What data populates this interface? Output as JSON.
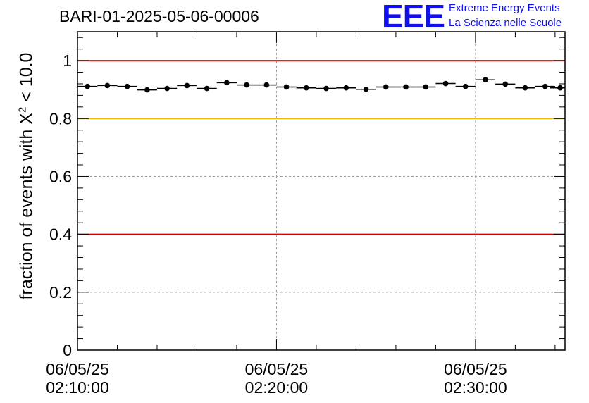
{
  "header": {
    "title": "BARI-01-2025-05-06-00006",
    "logo": "EEE",
    "logo_line1": "Extreme Energy Events",
    "logo_line2": "La Scienza nelle Scuole"
  },
  "colors": {
    "reference_high": "#e00000",
    "reference_warn": "#f5b800",
    "reference_low": "#e00000",
    "logo": "#1010ee"
  },
  "chart_data": {
    "type": "scatter",
    "title": "BARI-01-2025-05-06-00006",
    "ylabel_prefix": "fraction of events with X",
    "ylabel_sup": "2",
    "ylabel_suffix": " < 10.0",
    "xlabel": "",
    "ylim": [
      0,
      1.1
    ],
    "yticks": [
      0,
      0.2,
      0.4,
      0.6,
      0.8,
      1
    ],
    "ytick_labels": [
      "0",
      "0.2",
      "0.4",
      "0.6",
      "0.8",
      "1"
    ],
    "x_unit": "minutes after 06/05/25 02:10:00",
    "xlim": [
      0,
      24.5
    ],
    "xticks": [
      {
        "x": 0,
        "date": "06/05/25",
        "time": "02:10:00"
      },
      {
        "x": 10,
        "date": "06/05/25",
        "time": "02:20:00"
      },
      {
        "x": 20,
        "date": "06/05/25",
        "time": "02:30:00"
      }
    ],
    "grid": true,
    "reference_lines": [
      {
        "y": 1.0,
        "color": "#e00000"
      },
      {
        "y": 0.8,
        "color": "#f5b800"
      },
      {
        "y": 0.4,
        "color": "#e00000"
      }
    ],
    "bin_width": 1,
    "series": [
      {
        "x": [
          0.5,
          1.5,
          2.5,
          3.5,
          4.5,
          5.5,
          6.5,
          7.5,
          8.5,
          9.5,
          10.5,
          11.5,
          12.5,
          13.5,
          14.5,
          15.5,
          16.5,
          17.5,
          18.5,
          19.5,
          20.5,
          21.5,
          22.5,
          23.5,
          24.25
        ],
        "values": [
          0.911,
          0.914,
          0.911,
          0.899,
          0.904,
          0.914,
          0.904,
          0.924,
          0.916,
          0.916,
          0.909,
          0.906,
          0.904,
          0.906,
          0.901,
          0.909,
          0.909,
          0.909,
          0.921,
          0.911,
          0.934,
          0.919,
          0.906,
          0.911,
          0.906
        ],
        "errors": [
          0.004,
          0.004,
          0.004,
          0.004,
          0.004,
          0.004,
          0.004,
          0.004,
          0.004,
          0.004,
          0.004,
          0.004,
          0.004,
          0.004,
          0.004,
          0.004,
          0.004,
          0.004,
          0.004,
          0.004,
          0.004,
          0.004,
          0.004,
          0.004,
          0.004
        ]
      }
    ]
  }
}
